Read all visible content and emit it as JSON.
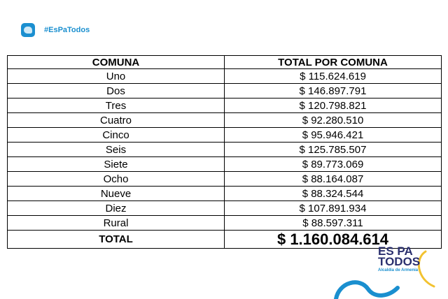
{
  "header": {
    "hashtag": "#EsPaTodos"
  },
  "table": {
    "col_comuna": "COMUNA",
    "col_total": "TOTAL POR COMUNA",
    "rows": [
      {
        "comuna": "Uno",
        "total": "$ 115.624.619"
      },
      {
        "comuna": "Dos",
        "total": "$ 146.897.791"
      },
      {
        "comuna": "Tres",
        "total": "$ 120.798.821"
      },
      {
        "comuna": "Cuatro",
        "total": "$ 92.280.510"
      },
      {
        "comuna": "Cinco",
        "total": "$ 95.946.421"
      },
      {
        "comuna": "Seis",
        "total": "$ 125.785.507"
      },
      {
        "comuna": "Siete",
        "total": "$ 89.773.069"
      },
      {
        "comuna": "Ocho",
        "total": "$ 88.164.087"
      },
      {
        "comuna": "Nueve",
        "total": "$ 88.324.544"
      },
      {
        "comuna": "Diez",
        "total": "$ 107.891.934"
      },
      {
        "comuna": "Rural",
        "total": "$ 88.597.311"
      }
    ],
    "total_label": "TOTAL",
    "total_value": "$ 1.160.084.614"
  },
  "brand": {
    "line1": "ES PA",
    "line2": "TODOS",
    "subtitle": "Alcaldía de Armenia"
  },
  "colors": {
    "accent_blue": "#1a8fcf",
    "brand_navy": "#2a2f6e",
    "brand_yellow": "#f2c230"
  }
}
